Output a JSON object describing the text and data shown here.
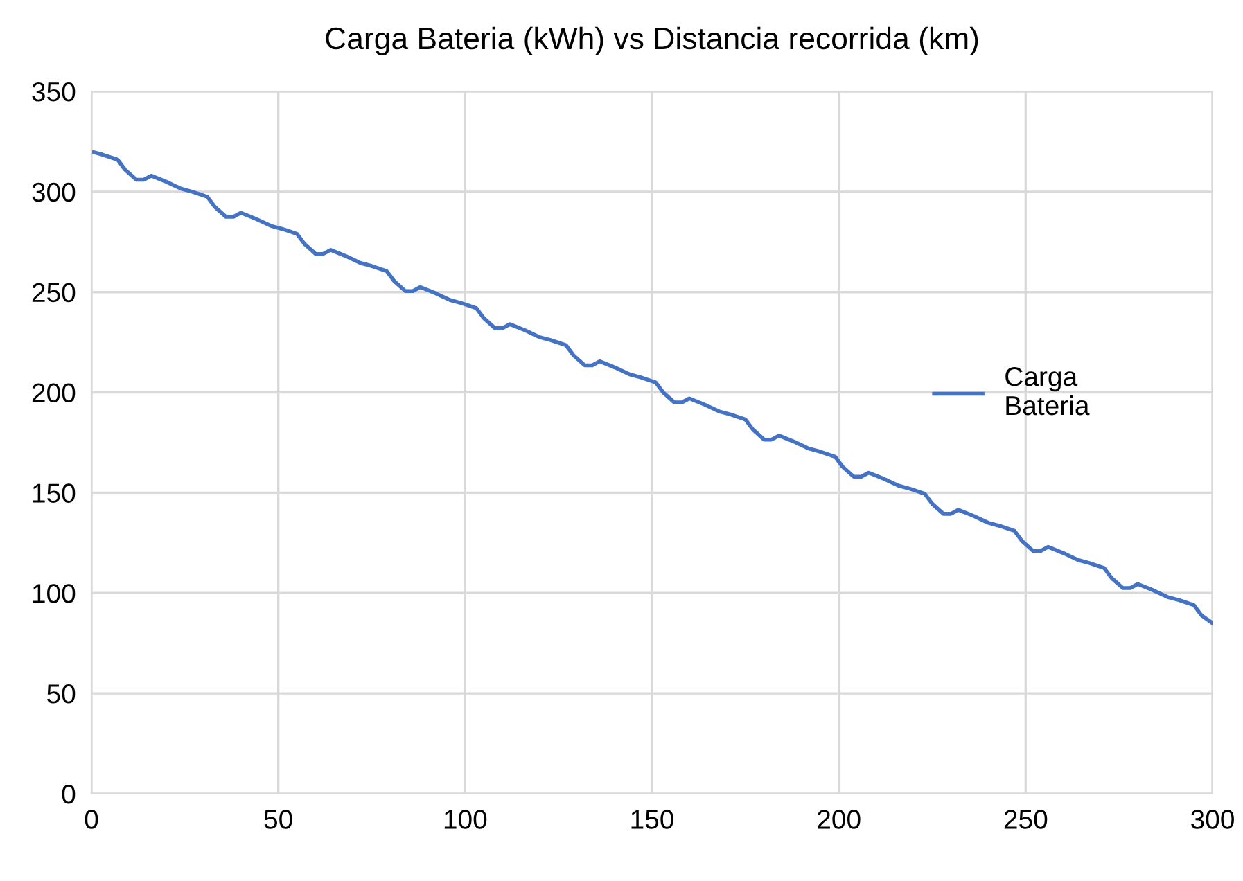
{
  "chart_data": {
    "type": "line",
    "title": "Carga Bateria (kWh) vs Distancia recorrida (km)",
    "x": [
      0,
      3,
      7,
      9,
      12,
      14,
      16,
      20,
      24,
      27,
      31,
      33,
      36,
      38,
      40,
      44,
      48,
      51,
      55,
      57,
      60,
      62,
      64,
      68,
      72,
      75,
      79,
      81,
      84,
      86,
      88,
      92,
      96,
      99,
      103,
      105,
      108,
      110,
      112,
      116,
      120,
      123,
      127,
      129,
      132,
      134,
      136,
      140,
      144,
      147,
      151,
      153,
      156,
      158,
      160,
      164,
      168,
      171,
      175,
      177,
      180,
      182,
      184,
      188,
      192,
      195,
      199,
      201,
      204,
      206,
      208,
      212,
      216,
      219,
      223,
      225,
      228,
      230,
      232,
      236,
      240,
      243,
      247,
      249,
      252,
      254,
      256,
      260,
      264,
      267,
      271,
      273,
      276,
      278,
      280,
      284,
      288,
      291,
      295,
      297,
      300
    ],
    "series": [
      {
        "name": "Carga Bateria",
        "color": "#4472c4",
        "values": [
          320,
          318.5,
          316,
          311,
          306,
          306,
          308,
          305,
          301.5,
          300,
          297.5,
          292.5,
          287.5,
          287.5,
          289.5,
          286.5,
          283,
          281.5,
          279,
          274,
          269,
          269,
          271,
          268,
          264.5,
          263,
          260.5,
          255.5,
          250.5,
          250.5,
          252.5,
          249.5,
          246,
          244.5,
          242,
          237,
          232,
          232,
          234,
          231,
          227.5,
          226,
          223.5,
          218.5,
          213.5,
          213.5,
          215.5,
          212.5,
          209,
          207.5,
          205,
          200,
          195,
          195,
          197,
          194,
          190.5,
          189,
          186.5,
          181.5,
          176.5,
          176.5,
          178.5,
          175.5,
          172,
          170.5,
          168,
          163,
          158,
          158,
          160,
          157,
          153.5,
          152,
          149.5,
          144.5,
          139.5,
          139.5,
          141.5,
          138.5,
          135,
          133.5,
          131,
          126,
          121,
          121,
          123,
          120,
          116.5,
          115,
          112.5,
          107.5,
          102.5,
          102.5,
          104.5,
          101.5,
          98,
          96.5,
          94,
          89,
          85
        ]
      }
    ],
    "xlim": [
      0,
      300
    ],
    "xticks": [
      0,
      50,
      100,
      150,
      200,
      250,
      300
    ],
    "ylim": [
      0,
      350
    ],
    "yticks": [
      0,
      50,
      100,
      150,
      200,
      250,
      300,
      350
    ],
    "grid": true,
    "legend": "right",
    "marker": "none",
    "line_style": "solid"
  }
}
